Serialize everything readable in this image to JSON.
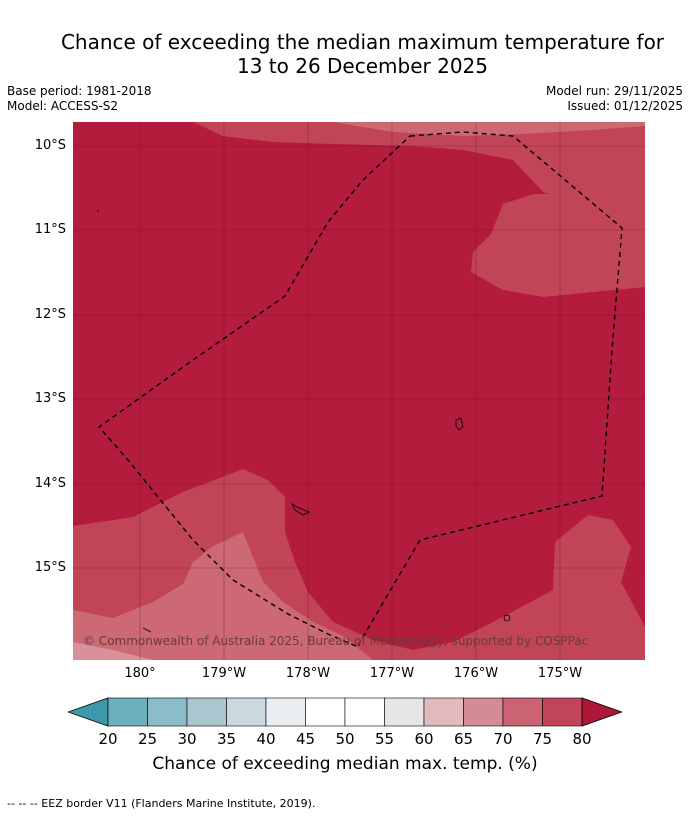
{
  "header": {
    "title_line1": "Chance of exceeding the median maximum temperature for",
    "title_line2": "13 to 26 December 2025",
    "base_period": "Base period: 1981-2018",
    "model": "Model: ACCESS-S2",
    "model_run": "Model run: 29/11/2025",
    "issued": "Issued: 01/12/2025"
  },
  "map": {
    "lat_labels": [
      "10°S",
      "11°S",
      "12°S",
      "13°S",
      "14°S",
      "15°S"
    ],
    "lon_labels": [
      "180°",
      "179°W",
      "178°W",
      "177°W",
      "176°W",
      "175°W"
    ],
    "copyright": "© Commonwealth of Australia 2025, Bureau of Meteorology, supported by COSPPac",
    "colors": {
      "c80": "#b31c3c",
      "c75": "#c24557",
      "c70": "#cd6875",
      "c65": "#d8919a",
      "ocean_line": "#000000"
    }
  },
  "colorbar": {
    "ticks": [
      "20",
      "25",
      "30",
      "35",
      "40",
      "45",
      "50",
      "55",
      "60",
      "65",
      "70",
      "75",
      "80"
    ],
    "colors": [
      "#3c9aab",
      "#6cb0be",
      "#8cbcc8",
      "#a9c7ce",
      "#c9d9de",
      "#e9eff2",
      "#ffffff",
      "#ffffff",
      "#e6e6e6",
      "#e2b9be",
      "#d58b94",
      "#cb6373",
      "#c0455a",
      "#ad1838"
    ],
    "label": "Chance of exceeding median max. temp. (%)"
  },
  "footnote": "--  --  -- EEZ border V11 (Flanders Marine Institute, 2019)."
}
